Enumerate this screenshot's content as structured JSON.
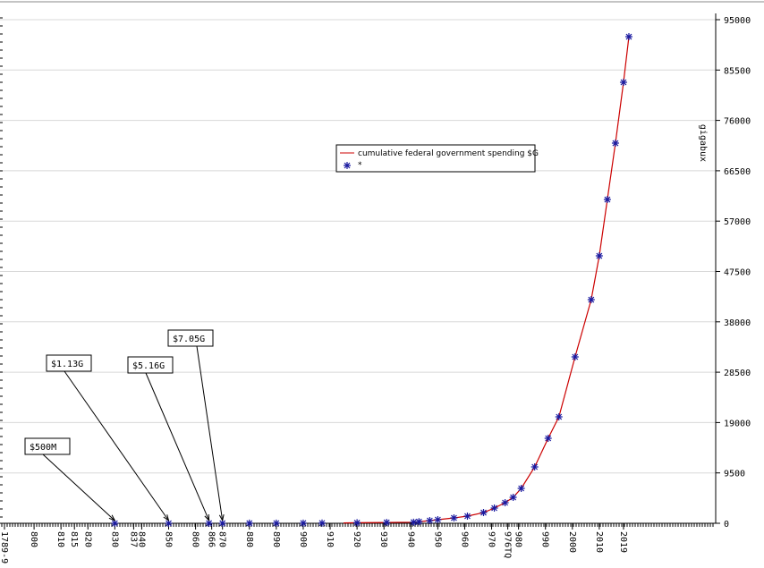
{
  "chart_data": {
    "type": "line",
    "y_axis_label": "gigabux",
    "xlim": [
      1789,
      2024
    ],
    "ylim": [
      0,
      95000
    ],
    "xticks": [
      {
        "value": 1789,
        "label": "1789-9"
      },
      {
        "value": 1800,
        "label": "800"
      },
      {
        "value": 1810,
        "label": "810"
      },
      {
        "value": 1815,
        "label": "815"
      },
      {
        "value": 1820,
        "label": "820"
      },
      {
        "value": 1830,
        "label": "830"
      },
      {
        "value": 1837,
        "label": "837"
      },
      {
        "value": 1840,
        "label": "840"
      },
      {
        "value": 1850,
        "label": "850"
      },
      {
        "value": 1860,
        "label": "860"
      },
      {
        "value": 1866,
        "label": "866"
      },
      {
        "value": 1870,
        "label": "870"
      },
      {
        "value": 1880,
        "label": "880"
      },
      {
        "value": 1890,
        "label": "890"
      },
      {
        "value": 1900,
        "label": "900"
      },
      {
        "value": 1910,
        "label": "910"
      },
      {
        "value": 1920,
        "label": "920"
      },
      {
        "value": 1930,
        "label": "930"
      },
      {
        "value": 1940,
        "label": "940"
      },
      {
        "value": 1950,
        "label": "950"
      },
      {
        "value": 1960,
        "label": "960"
      },
      {
        "value": 1970,
        "label": "970"
      },
      {
        "value": 1976,
        "label": "976TQ"
      },
      {
        "value": 1980,
        "label": "980"
      },
      {
        "value": 1990,
        "label": "990"
      },
      {
        "value": 2000,
        "label": "2000"
      },
      {
        "value": 2010,
        "label": "2010"
      },
      {
        "value": 2019,
        "label": "2019"
      }
    ],
    "yticks": [
      0,
      9500,
      19000,
      28500,
      38000,
      47500,
      57000,
      66500,
      76000,
      85500,
      95000
    ],
    "grid": true,
    "series": [
      {
        "name": "cumulative federal government spending $G",
        "color": "#cc0000",
        "kind": "line",
        "x": [
          1915,
          1920,
          1931,
          1941,
          1943,
          1947,
          1950,
          1956,
          1961,
          1967,
          1971,
          1975,
          1978,
          1981,
          1986,
          1991,
          1995,
          2001,
          2007,
          2010,
          2013,
          2016,
          2019,
          2021
        ],
        "values": [
          60,
          100,
          150,
          200,
          300,
          506,
          675,
          1010,
          1350,
          2020,
          2870,
          3880,
          4890,
          6580,
          10630,
          16030,
          20080,
          31385,
          42180,
          50450,
          61080,
          71710,
          83190,
          91790
        ]
      },
      {
        "name": "*",
        "color": "#1a1aa0",
        "kind": "points",
        "x": [
          1830,
          1850,
          1865,
          1870,
          1880,
          1890,
          1900,
          1907,
          1920,
          1931,
          1941,
          1943,
          1947,
          1950,
          1956,
          1961,
          1967,
          1971,
          1975,
          1978,
          1981,
          1986,
          1991,
          1995,
          2001,
          2007,
          2010,
          2013,
          2016,
          2019,
          2021
        ],
        "values": [
          0.5,
          1.13,
          5.16,
          7.05,
          15,
          20,
          30,
          40,
          100,
          150,
          200,
          300,
          506,
          675,
          1010,
          1350,
          2020,
          2870,
          3880,
          4890,
          6580,
          10630,
          16030,
          20080,
          31385,
          42180,
          50450,
          61080,
          71710,
          83190,
          91790
        ]
      }
    ],
    "annotations": [
      "$500M",
      "$1.13G",
      "$5.16G",
      "$7.05G"
    ]
  }
}
